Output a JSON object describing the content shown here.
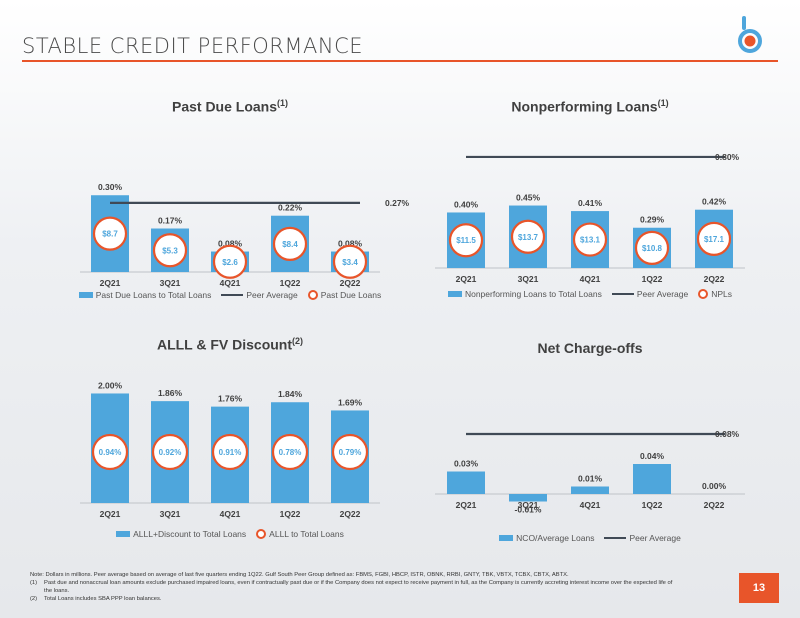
{
  "page": {
    "title": "STABLE CREDIT PERFORMANCE",
    "page_number": "13",
    "colors": {
      "accent": "#e8552a",
      "bar": "#4ea6dc",
      "peer_line": "#404a56"
    },
    "notes": {
      "main": "Note: Dollars in millions. Peer average based on average of last five quarters ending 1Q22. Gulf South Peer Group defined as: FBMS, FGBI, HBCP, ISTR, OBNK, RRBI, GNTY, TBK, VBTX, TCBX, CBTX, ABTX.",
      "n1_mark": "(1)",
      "n1_text": "Past due and nonaccrual loan amounts exclude purchased impaired loans, even if contractually past due or if the Company does not expect to receive payment in full, as the Company is currently accreting interest income over the expected life of the loans.",
      "n2_mark": "(2)",
      "n2_text": "Total Loans includes SBA PPP loan balances."
    }
  },
  "chart_data": [
    {
      "type": "bar",
      "title": "Past Due Loans",
      "title_sup": "(1)",
      "categories": [
        "2Q21",
        "3Q21",
        "4Q21",
        "1Q22",
        "2Q22"
      ],
      "series": [
        {
          "name": "Past Due Loans to Total Loans",
          "values": [
            0.3,
            0.17,
            0.08,
            0.22,
            0.08
          ],
          "labels": [
            "0.30%",
            "0.17%",
            "0.08%",
            "0.22%",
            "0.08%"
          ]
        }
      ],
      "peer_average": {
        "name": "Peer Average",
        "value": 0.27,
        "label": "0.27%"
      },
      "markers": {
        "name": "Past Due Loans",
        "labels": [
          "$8.7",
          "$5.3",
          "$2.6",
          "$8.4",
          "$3.4"
        ]
      },
      "ylim": [
        0,
        0.34
      ],
      "legend": "bottom",
      "grid": false
    },
    {
      "type": "bar",
      "title": "Nonperforming Loans",
      "title_sup": "(1)",
      "categories": [
        "2Q21",
        "3Q21",
        "4Q21",
        "1Q22",
        "2Q22"
      ],
      "series": [
        {
          "name": "Nonperforming Loans to Total Loans",
          "values": [
            0.4,
            0.45,
            0.41,
            0.29,
            0.42
          ],
          "labels": [
            "0.40%",
            "0.45%",
            "0.41%",
            "0.29%",
            "0.42%"
          ]
        }
      ],
      "peer_average": {
        "name": "Peer Average",
        "value": 0.8,
        "label": "0.80%"
      },
      "markers": {
        "name": "NPLs",
        "labels": [
          "$11.5",
          "$13.7",
          "$13.1",
          "$10.8",
          "$17.1"
        ]
      },
      "ylim": [
        0,
        0.85
      ],
      "legend": "bottom",
      "grid": false
    },
    {
      "type": "bar",
      "title": "ALLL & FV Discount",
      "title_sup": "(2)",
      "categories": [
        "2Q21",
        "3Q21",
        "4Q21",
        "1Q22",
        "2Q22"
      ],
      "series": [
        {
          "name": "ALLL+Discount to Total Loans",
          "values": [
            2.0,
            1.86,
            1.76,
            1.84,
            1.69
          ],
          "labels": [
            "2.00%",
            "1.86%",
            "1.76%",
            "1.84%",
            "1.69%"
          ]
        }
      ],
      "markers": {
        "name": "ALLL to Total Loans",
        "labels": [
          "0.94%",
          "0.92%",
          "0.91%",
          "0.78%",
          "0.79%"
        ]
      },
      "ylim": [
        0,
        2.1
      ],
      "legend": "bottom",
      "grid": false
    },
    {
      "type": "bar",
      "title": "Net Charge-offs",
      "title_sup": "",
      "categories": [
        "2Q21",
        "3Q21",
        "4Q21",
        "1Q22",
        "2Q22"
      ],
      "series": [
        {
          "name": "NCO/Average Loans",
          "values": [
            0.03,
            -0.01,
            0.01,
            0.04,
            0.0
          ],
          "labels": [
            "0.03%",
            "-0.01%",
            "0.01%",
            "0.04%",
            "0.00%"
          ]
        }
      ],
      "peer_average": {
        "name": "Peer Average",
        "value": 0.08,
        "label": "0.08%"
      },
      "ylim": [
        -0.01,
        0.08
      ],
      "legend": "bottom",
      "grid": false
    }
  ]
}
